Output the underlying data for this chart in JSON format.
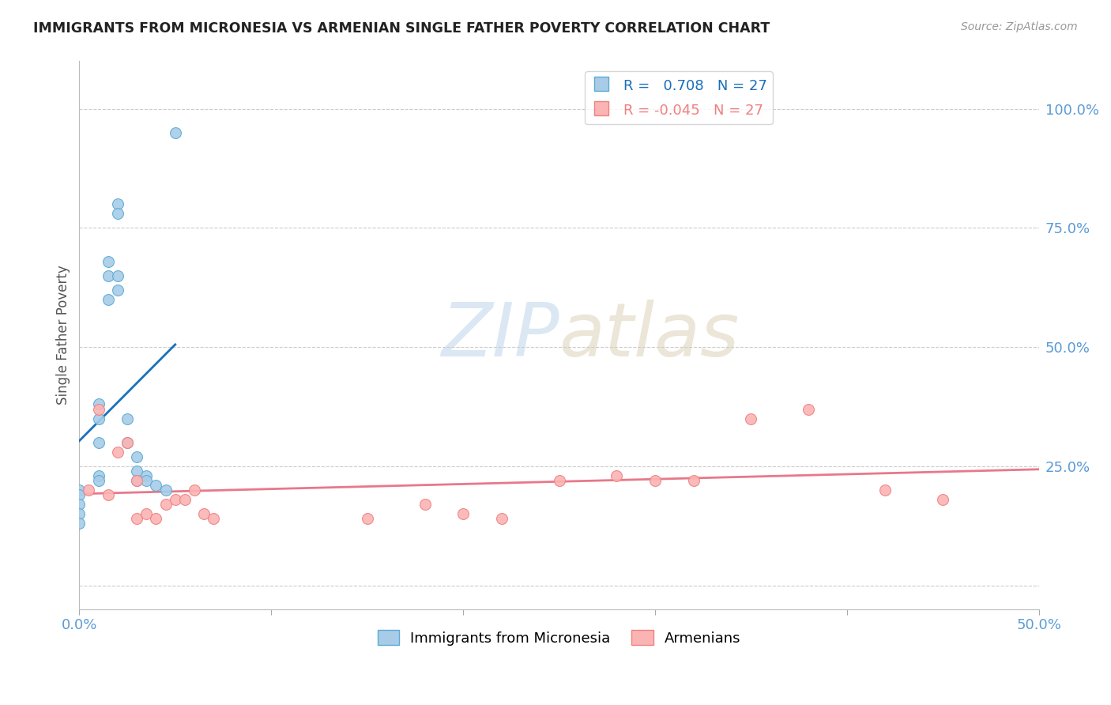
{
  "title": "IMMIGRANTS FROM MICRONESIA VS ARMENIAN SINGLE FATHER POVERTY CORRELATION CHART",
  "source": "Source: ZipAtlas.com",
  "ylabel": "Single Father Poverty",
  "legend_blue_R": "0.708",
  "legend_blue_N": "27",
  "legend_pink_R": "-0.045",
  "legend_pink_N": "27",
  "legend_blue_label": "Immigrants from Micronesia",
  "legend_pink_label": "Armenians",
  "blue_x": [
    0.0,
    0.0,
    0.0,
    0.0,
    0.0,
    0.01,
    0.01,
    0.01,
    0.01,
    0.01,
    0.015,
    0.015,
    0.015,
    0.02,
    0.02,
    0.02,
    0.02,
    0.025,
    0.025,
    0.03,
    0.03,
    0.03,
    0.035,
    0.035,
    0.04,
    0.045,
    0.05
  ],
  "blue_y": [
    0.2,
    0.19,
    0.17,
    0.15,
    0.13,
    0.38,
    0.35,
    0.3,
    0.23,
    0.22,
    0.68,
    0.65,
    0.6,
    0.8,
    0.78,
    0.65,
    0.62,
    0.35,
    0.3,
    0.27,
    0.24,
    0.22,
    0.23,
    0.22,
    0.21,
    0.2,
    0.95
  ],
  "pink_x": [
    0.005,
    0.01,
    0.015,
    0.02,
    0.025,
    0.03,
    0.03,
    0.035,
    0.04,
    0.045,
    0.05,
    0.055,
    0.06,
    0.065,
    0.07,
    0.15,
    0.18,
    0.2,
    0.22,
    0.25,
    0.28,
    0.3,
    0.32,
    0.35,
    0.38,
    0.42,
    0.45
  ],
  "pink_y": [
    0.2,
    0.37,
    0.19,
    0.28,
    0.3,
    0.22,
    0.14,
    0.15,
    0.14,
    0.17,
    0.18,
    0.18,
    0.2,
    0.15,
    0.14,
    0.14,
    0.17,
    0.15,
    0.14,
    0.22,
    0.23,
    0.22,
    0.22,
    0.35,
    0.37,
    0.2,
    0.18
  ],
  "xlim": [
    0.0,
    0.5
  ],
  "ylim": [
    -0.05,
    1.1
  ],
  "blue_dot_color": "#a8cce8",
  "blue_dot_edge": "#5baad4",
  "pink_dot_color": "#fbb4b4",
  "pink_dot_edge": "#f08080",
  "blue_line_color": "#1a6fba",
  "pink_line_color": "#e8788a",
  "watermark_color": "#c5d8ee",
  "bg_color": "#ffffff",
  "grid_color": "#cccccc",
  "ytick_color": "#5b9bd5",
  "xtick_color": "#5b9bd5"
}
